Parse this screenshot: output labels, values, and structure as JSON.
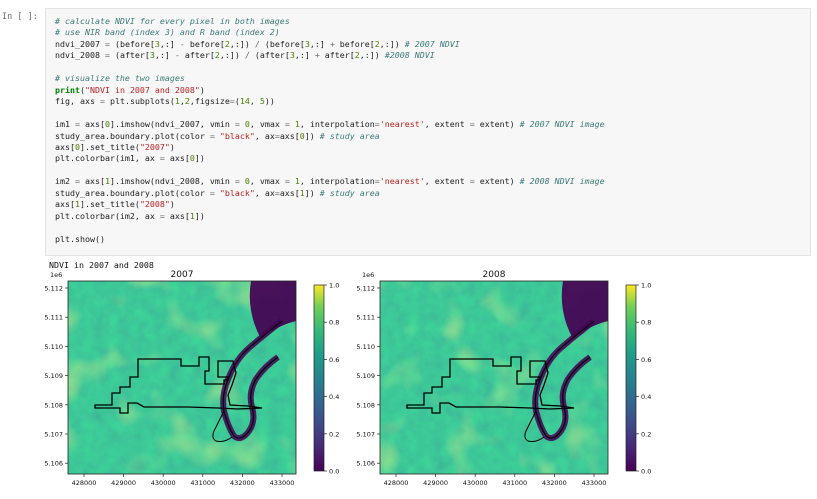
{
  "cell": {
    "prompt": "In [ ]:",
    "lines": [
      [
        [
          "c",
          "# calculate NDVI for every pixel in both images"
        ]
      ],
      [
        [
          "c",
          "# use NIR band (index 3) and R band (index 2)"
        ]
      ],
      [
        [
          "t",
          "ndvi_2007 "
        ],
        [
          "o",
          "="
        ],
        [
          "t",
          " (before["
        ],
        [
          "n",
          "3"
        ],
        [
          "t",
          ",:] "
        ],
        [
          "o",
          "-"
        ],
        [
          "t",
          " before["
        ],
        [
          "n",
          "2"
        ],
        [
          "t",
          ",:]) "
        ],
        [
          "o",
          "/"
        ],
        [
          "t",
          " (before["
        ],
        [
          "n",
          "3"
        ],
        [
          "t",
          ",:] "
        ],
        [
          "o",
          "+"
        ],
        [
          "t",
          " before["
        ],
        [
          "n",
          "2"
        ],
        [
          "t",
          ",:]) "
        ],
        [
          "c",
          "# 2007 NDVI"
        ]
      ],
      [
        [
          "t",
          "ndvi_2008 "
        ],
        [
          "o",
          "="
        ],
        [
          "t",
          " (after["
        ],
        [
          "n",
          "3"
        ],
        [
          "t",
          ",:] "
        ],
        [
          "o",
          "-"
        ],
        [
          "t",
          " after["
        ],
        [
          "n",
          "2"
        ],
        [
          "t",
          ",:]) "
        ],
        [
          "o",
          "/"
        ],
        [
          "t",
          " (after["
        ],
        [
          "n",
          "3"
        ],
        [
          "t",
          ",:] "
        ],
        [
          "o",
          "+"
        ],
        [
          "t",
          " after["
        ],
        [
          "n",
          "2"
        ],
        [
          "t",
          ",:]) "
        ],
        [
          "c",
          "#2008 NDVI"
        ]
      ],
      [],
      [
        [
          "c",
          "# visualize the two images"
        ]
      ],
      [
        [
          "k",
          "print"
        ],
        [
          "t",
          "("
        ],
        [
          "s",
          "\"NDVI in 2007 and 2008\""
        ],
        [
          "t",
          ")"
        ]
      ],
      [
        [
          "t",
          "fig, axs "
        ],
        [
          "o",
          "="
        ],
        [
          "t",
          " plt.subplots("
        ],
        [
          "n",
          "1"
        ],
        [
          "t",
          ","
        ],
        [
          "n",
          "2"
        ],
        [
          "t",
          ",figsize"
        ],
        [
          "o",
          "="
        ],
        [
          "t",
          "("
        ],
        [
          "n",
          "14"
        ],
        [
          "t",
          ", "
        ],
        [
          "n",
          "5"
        ],
        [
          "t",
          "))"
        ]
      ],
      [],
      [
        [
          "t",
          "im1 "
        ],
        [
          "o",
          "="
        ],
        [
          "t",
          " axs["
        ],
        [
          "n",
          "0"
        ],
        [
          "t",
          "].imshow(ndvi_2007, vmin "
        ],
        [
          "o",
          "="
        ],
        [
          "t",
          " "
        ],
        [
          "n",
          "0"
        ],
        [
          "t",
          ", vmax "
        ],
        [
          "o",
          "="
        ],
        [
          "t",
          " "
        ],
        [
          "n",
          "1"
        ],
        [
          "t",
          ", interpolation"
        ],
        [
          "o",
          "="
        ],
        [
          "s",
          "'nearest'"
        ],
        [
          "t",
          ", extent "
        ],
        [
          "o",
          "="
        ],
        [
          "t",
          " extent) "
        ],
        [
          "c",
          "# 2007 NDVI image"
        ]
      ],
      [
        [
          "t",
          "study_area.boundary.plot(color "
        ],
        [
          "o",
          "="
        ],
        [
          "t",
          " "
        ],
        [
          "s",
          "\"black\""
        ],
        [
          "t",
          ", ax"
        ],
        [
          "o",
          "="
        ],
        [
          "t",
          "axs["
        ],
        [
          "n",
          "0"
        ],
        [
          "t",
          "]) "
        ],
        [
          "c",
          "# study area"
        ]
      ],
      [
        [
          "t",
          "axs["
        ],
        [
          "n",
          "0"
        ],
        [
          "t",
          "].set_title("
        ],
        [
          "s",
          "\"2007\""
        ],
        [
          "t",
          ")"
        ]
      ],
      [
        [
          "t",
          "plt.colorbar(im1, ax "
        ],
        [
          "o",
          "="
        ],
        [
          "t",
          " axs["
        ],
        [
          "n",
          "0"
        ],
        [
          "t",
          "])"
        ]
      ],
      [],
      [
        [
          "t",
          "im2 "
        ],
        [
          "o",
          "="
        ],
        [
          "t",
          " axs["
        ],
        [
          "n",
          "1"
        ],
        [
          "t",
          "].imshow(ndvi_2008, vmin "
        ],
        [
          "o",
          "="
        ],
        [
          "t",
          " "
        ],
        [
          "n",
          "0"
        ],
        [
          "t",
          ", vmax "
        ],
        [
          "o",
          "="
        ],
        [
          "t",
          " "
        ],
        [
          "n",
          "1"
        ],
        [
          "t",
          ", interpolation"
        ],
        [
          "o",
          "="
        ],
        [
          "s",
          "'nearest'"
        ],
        [
          "t",
          ", extent "
        ],
        [
          "o",
          "="
        ],
        [
          "t",
          " extent) "
        ],
        [
          "c",
          "# 2008 NDVI image"
        ]
      ],
      [
        [
          "t",
          "study_area.boundary.plot(color "
        ],
        [
          "o",
          "="
        ],
        [
          "t",
          " "
        ],
        [
          "s",
          "\"black\""
        ],
        [
          "t",
          ", ax"
        ],
        [
          "o",
          "="
        ],
        [
          "t",
          "axs["
        ],
        [
          "n",
          "1"
        ],
        [
          "t",
          "]) "
        ],
        [
          "c",
          "# study area"
        ]
      ],
      [
        [
          "t",
          "axs["
        ],
        [
          "n",
          "1"
        ],
        [
          "t",
          "].set_title("
        ],
        [
          "s",
          "\"2008\""
        ],
        [
          "t",
          ")"
        ]
      ],
      [
        [
          "t",
          "plt.colorbar(im2, ax "
        ],
        [
          "o",
          "="
        ],
        [
          "t",
          " axs["
        ],
        [
          "n",
          "1"
        ],
        [
          "t",
          "])"
        ]
      ],
      [],
      [
        [
          "t",
          "plt.show()"
        ]
      ]
    ]
  },
  "output": {
    "text": "NDVI in 2007 and 2008",
    "colors": {
      "low": "#440154",
      "mid": "#21918c",
      "high": "#fde725"
    },
    "colormap": "viridis",
    "plots": [
      {
        "title": "2007",
        "offset_label": "1e6",
        "yticks": [
          "5.112",
          "5.111",
          "5.110",
          "5.109",
          "5.108",
          "5.107",
          "5.106"
        ],
        "xticks": [
          "428000",
          "429000",
          "430000",
          "431000",
          "432000",
          "433000"
        ],
        "colorbar_ticks": [
          "1.0",
          "0.8",
          "0.6",
          "0.4",
          "0.2",
          "0.0"
        ]
      },
      {
        "title": "2008",
        "offset_label": "1e6",
        "yticks": [
          "5.112",
          "5.111",
          "5.110",
          "5.109",
          "5.108",
          "5.107",
          "5.106"
        ],
        "xticks": [
          "428000",
          "429000",
          "430000",
          "431000",
          "432000",
          "433000"
        ],
        "colorbar_ticks": [
          "1.0",
          "0.8",
          "0.6",
          "0.4",
          "0.2",
          "0.0"
        ]
      }
    ]
  }
}
